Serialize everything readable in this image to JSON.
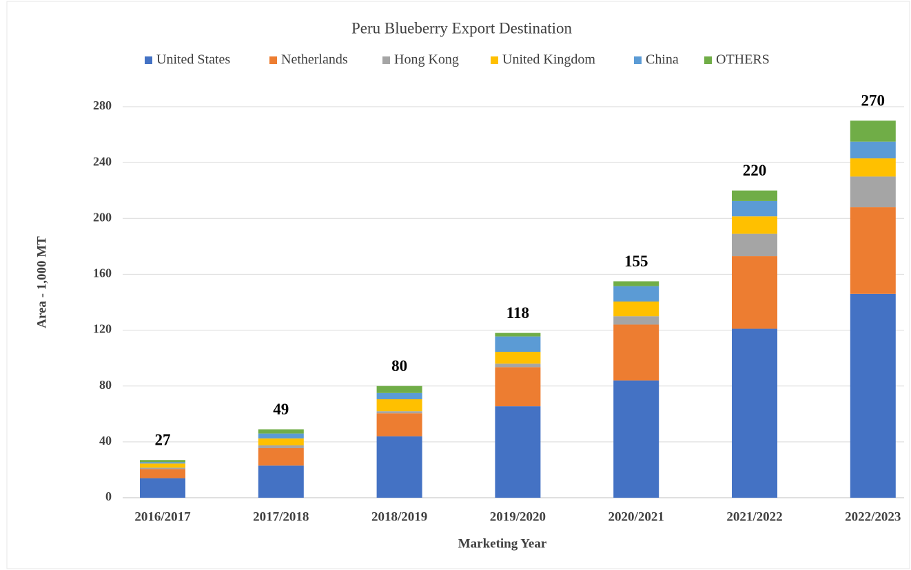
{
  "chart_data": {
    "type": "stacked_bar",
    "title": "Peru Blueberry Export Destination",
    "x_label": "Marketing Year",
    "y_label": "Area - 1,000 MT",
    "categories": [
      "2016/2017",
      "2017/2018",
      "2018/2019",
      "2019/2020",
      "2020/2021",
      "2021/2022",
      "2022/2023"
    ],
    "series": [
      {
        "name": "United States",
        "color": "#4472c4",
        "values": [
          14,
          23,
          44,
          65.5,
          84,
          121,
          146
        ]
      },
      {
        "name": "Netherlands",
        "color": "#ed7d31",
        "values": [
          6.5,
          12.5,
          16.5,
          28,
          40,
          52,
          62
        ]
      },
      {
        "name": "Hong Kong",
        "color": "#a5a5a5",
        "values": [
          1,
          2,
          1.5,
          2.5,
          6,
          16,
          22
        ]
      },
      {
        "name": "United Kingdom",
        "color": "#ffc000",
        "values": [
          3,
          5,
          8.5,
          8.5,
          10.5,
          12.5,
          13
        ]
      },
      {
        "name": "China",
        "color": "#5b9bd5",
        "values": [
          1,
          3.5,
          4.5,
          11,
          11,
          11,
          12
        ]
      },
      {
        "name": "OTHERS",
        "color": "#70ad47",
        "values": [
          1.5,
          3,
          5,
          2.5,
          3.5,
          7.5,
          15
        ]
      }
    ],
    "totals": [
      27,
      49,
      80,
      118,
      155,
      220,
      270
    ],
    "ylim": [
      0,
      280
    ],
    "yticks": [
      0,
      40,
      80,
      120,
      160,
      200,
      240,
      280
    ],
    "grid": true,
    "legend": "top"
  }
}
